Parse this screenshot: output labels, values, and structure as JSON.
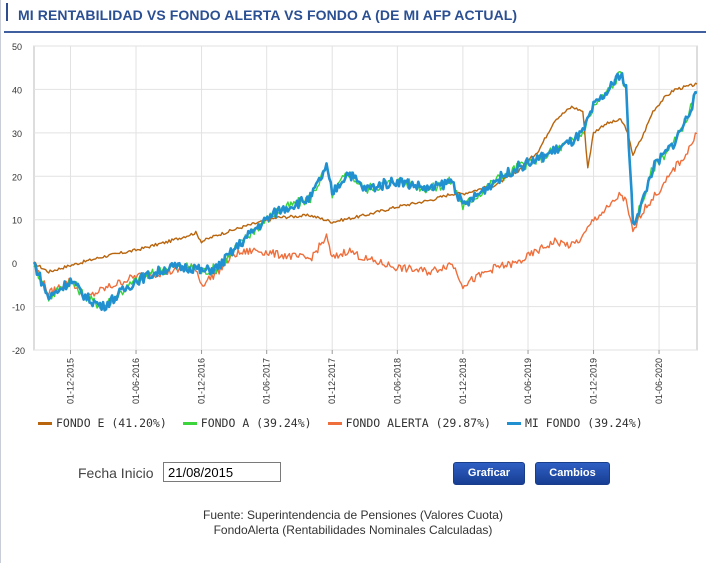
{
  "title": "MI RENTABILIDAD VS FONDO ALERTA VS FONDO A (DE MI AFP ACTUAL)",
  "legend": [
    {
      "label": "FONDO E (41.20%)",
      "color": "#b8650e"
    },
    {
      "label": "FONDO A (39.24%)",
      "color": "#3bd43b"
    },
    {
      "label": "FONDO ALERTA (29.87%)",
      "color": "#ef6f3c"
    },
    {
      "label": "MI FONDO (39.24%)",
      "color": "#2090d0"
    }
  ],
  "form": {
    "start_label": "Fecha Inicio",
    "start_value": "21/08/2015",
    "graficar_label": "Graficar",
    "cambios_label": "Cambios"
  },
  "footer": {
    "line1": "Fuente: Superintendencia de Pensiones (Valores Cuota)",
    "line2": "FondoAlerta (Rentabilidades Nominales Calculadas)"
  },
  "chart_data": {
    "type": "line",
    "title": "MI RENTABILIDAD VS FONDO ALERTA VS FONDO A (DE MI AFP ACTUAL)",
    "xlabel": "",
    "ylabel": "",
    "ylim": [
      -20,
      50
    ],
    "yticks": [
      -20,
      -10,
      0,
      10,
      20,
      30,
      40,
      50
    ],
    "x_range": [
      "2015-08-21",
      "2020-09-15"
    ],
    "x_ticks": [
      "01-12-2015",
      "01-06-2016",
      "01-12-2016",
      "01-06-2017",
      "01-12-2017",
      "01-06-2018",
      "01-12-2018",
      "01-06-2019",
      "01-12-2019",
      "01-06-2020"
    ],
    "grid": true,
    "legend_position": "bottom",
    "series": [
      {
        "name": "FONDO E (41.20%)",
        "color": "#b8650e",
        "points": [
          [
            "2015-08-21",
            0
          ],
          [
            "2015-10-01",
            -2
          ],
          [
            "2015-12-01",
            -0.5
          ],
          [
            "2016-03-01",
            1.5
          ],
          [
            "2016-06-01",
            3
          ],
          [
            "2016-09-01",
            5
          ],
          [
            "2016-11-15",
            7
          ],
          [
            "2016-12-01",
            5
          ],
          [
            "2017-01-15",
            6.5
          ],
          [
            "2017-04-01",
            8.5
          ],
          [
            "2017-07-01",
            10.5
          ],
          [
            "2017-10-01",
            11
          ],
          [
            "2017-12-01",
            9.5
          ],
          [
            "2018-03-01",
            11
          ],
          [
            "2018-06-01",
            13
          ],
          [
            "2018-09-01",
            14.5
          ],
          [
            "2018-11-01",
            16
          ],
          [
            "2018-12-01",
            16
          ],
          [
            "2019-03-01",
            18
          ],
          [
            "2019-05-01",
            21
          ],
          [
            "2019-07-01",
            26
          ],
          [
            "2019-08-15",
            33
          ],
          [
            "2019-10-01",
            36
          ],
          [
            "2019-11-01",
            35
          ],
          [
            "2019-11-15",
            22
          ],
          [
            "2019-12-01",
            30
          ],
          [
            "2020-01-01",
            32
          ],
          [
            "2020-02-15",
            33
          ],
          [
            "2020-03-01",
            31
          ],
          [
            "2020-03-20",
            25
          ],
          [
            "2020-04-15",
            29
          ],
          [
            "2020-05-15",
            35
          ],
          [
            "2020-06-15",
            38
          ],
          [
            "2020-07-15",
            40
          ],
          [
            "2020-09-15",
            41.2
          ]
        ]
      },
      {
        "name": "FONDO A (39.24%)",
        "color": "#3bd43b",
        "points": [
          [
            "2015-08-21",
            0
          ],
          [
            "2015-10-01",
            -8
          ],
          [
            "2015-12-01",
            -4
          ],
          [
            "2016-01-15",
            -8
          ],
          [
            "2016-03-01",
            -10
          ],
          [
            "2016-06-01",
            -4
          ],
          [
            "2016-09-01",
            -1
          ],
          [
            "2016-11-15",
            -1
          ],
          [
            "2016-12-01",
            -2
          ],
          [
            "2017-01-15",
            -1
          ],
          [
            "2017-03-01",
            3
          ],
          [
            "2017-05-01",
            8
          ],
          [
            "2017-07-01",
            12
          ],
          [
            "2017-10-01",
            15
          ],
          [
            "2017-11-15",
            22
          ],
          [
            "2017-12-01",
            16
          ],
          [
            "2018-01-15",
            21
          ],
          [
            "2018-03-01",
            17
          ],
          [
            "2018-06-01",
            19
          ],
          [
            "2018-09-01",
            17
          ],
          [
            "2018-11-01",
            19
          ],
          [
            "2018-12-01",
            13
          ],
          [
            "2019-01-15",
            16
          ],
          [
            "2019-03-01",
            19
          ],
          [
            "2019-05-01",
            22
          ],
          [
            "2019-07-01",
            24
          ],
          [
            "2019-08-15",
            26
          ],
          [
            "2019-10-01",
            28
          ],
          [
            "2019-11-01",
            30
          ],
          [
            "2019-12-01",
            36
          ],
          [
            "2020-01-15",
            40
          ],
          [
            "2020-02-15",
            44
          ],
          [
            "2020-03-01",
            40
          ],
          [
            "2020-03-20",
            9
          ],
          [
            "2020-04-15",
            14
          ],
          [
            "2020-05-15",
            22
          ],
          [
            "2020-06-15",
            25
          ],
          [
            "2020-07-15",
            28
          ],
          [
            "2020-08-15",
            33
          ],
          [
            "2020-09-15",
            39.24
          ]
        ]
      },
      {
        "name": "FONDO ALERTA (29.87%)",
        "color": "#ef6f3c",
        "points": [
          [
            "2015-08-21",
            0
          ],
          [
            "2015-10-01",
            -7
          ],
          [
            "2015-12-01",
            -4
          ],
          [
            "2016-01-15",
            -8
          ],
          [
            "2016-03-01",
            -6
          ],
          [
            "2016-06-01",
            -3
          ],
          [
            "2016-09-01",
            -2
          ],
          [
            "2016-11-15",
            -1
          ],
          [
            "2016-12-01",
            -5
          ],
          [
            "2017-01-15",
            -2
          ],
          [
            "2017-03-01",
            2
          ],
          [
            "2017-05-01",
            3
          ],
          [
            "2017-07-01",
            2
          ],
          [
            "2017-10-01",
            1
          ],
          [
            "2017-11-15",
            6
          ],
          [
            "2017-12-01",
            1
          ],
          [
            "2018-01-15",
            3
          ],
          [
            "2018-03-01",
            1
          ],
          [
            "2018-06-01",
            -1
          ],
          [
            "2018-09-01",
            -2
          ],
          [
            "2018-11-01",
            0
          ],
          [
            "2018-12-01",
            -5
          ],
          [
            "2019-01-15",
            -3
          ],
          [
            "2019-03-01",
            -1
          ],
          [
            "2019-05-01",
            0
          ],
          [
            "2019-07-01",
            3
          ],
          [
            "2019-08-15",
            5
          ],
          [
            "2019-10-01",
            4
          ],
          [
            "2019-11-01",
            6
          ],
          [
            "2019-12-01",
            10
          ],
          [
            "2020-01-15",
            13
          ],
          [
            "2020-02-15",
            16
          ],
          [
            "2020-03-01",
            14
          ],
          [
            "2020-03-20",
            7
          ],
          [
            "2020-04-15",
            12
          ],
          [
            "2020-05-15",
            15
          ],
          [
            "2020-06-15",
            18
          ],
          [
            "2020-07-15",
            22
          ],
          [
            "2020-08-15",
            25
          ],
          [
            "2020-09-15",
            29.87
          ]
        ]
      },
      {
        "name": "MI FONDO (39.24%)",
        "color": "#2090d0",
        "points": [
          [
            "2015-08-21",
            0
          ],
          [
            "2015-10-01",
            -8
          ],
          [
            "2015-12-01",
            -4
          ],
          [
            "2016-01-15",
            -8
          ],
          [
            "2016-03-01",
            -10
          ],
          [
            "2016-06-01",
            -4
          ],
          [
            "2016-09-01",
            -1
          ],
          [
            "2016-11-15",
            -1
          ],
          [
            "2016-12-01",
            -2
          ],
          [
            "2017-01-15",
            -1
          ],
          [
            "2017-03-01",
            3
          ],
          [
            "2017-05-01",
            8
          ],
          [
            "2017-07-01",
            12
          ],
          [
            "2017-10-01",
            15
          ],
          [
            "2017-11-15",
            22
          ],
          [
            "2017-12-01",
            16
          ],
          [
            "2018-01-15",
            21
          ],
          [
            "2018-03-01",
            17
          ],
          [
            "2018-06-01",
            19
          ],
          [
            "2018-09-01",
            17
          ],
          [
            "2018-11-01",
            19
          ],
          [
            "2018-12-01",
            13
          ],
          [
            "2019-01-15",
            16
          ],
          [
            "2019-03-01",
            19
          ],
          [
            "2019-05-01",
            22
          ],
          [
            "2019-07-01",
            24
          ],
          [
            "2019-08-15",
            26
          ],
          [
            "2019-10-01",
            28
          ],
          [
            "2019-11-01",
            30
          ],
          [
            "2019-12-01",
            36
          ],
          [
            "2020-01-15",
            40
          ],
          [
            "2020-02-15",
            44
          ],
          [
            "2020-03-01",
            40
          ],
          [
            "2020-03-20",
            9
          ],
          [
            "2020-04-15",
            14
          ],
          [
            "2020-05-15",
            22
          ],
          [
            "2020-06-15",
            25
          ],
          [
            "2020-07-15",
            28
          ],
          [
            "2020-08-15",
            33
          ],
          [
            "2020-09-15",
            39.24
          ]
        ]
      }
    ]
  }
}
